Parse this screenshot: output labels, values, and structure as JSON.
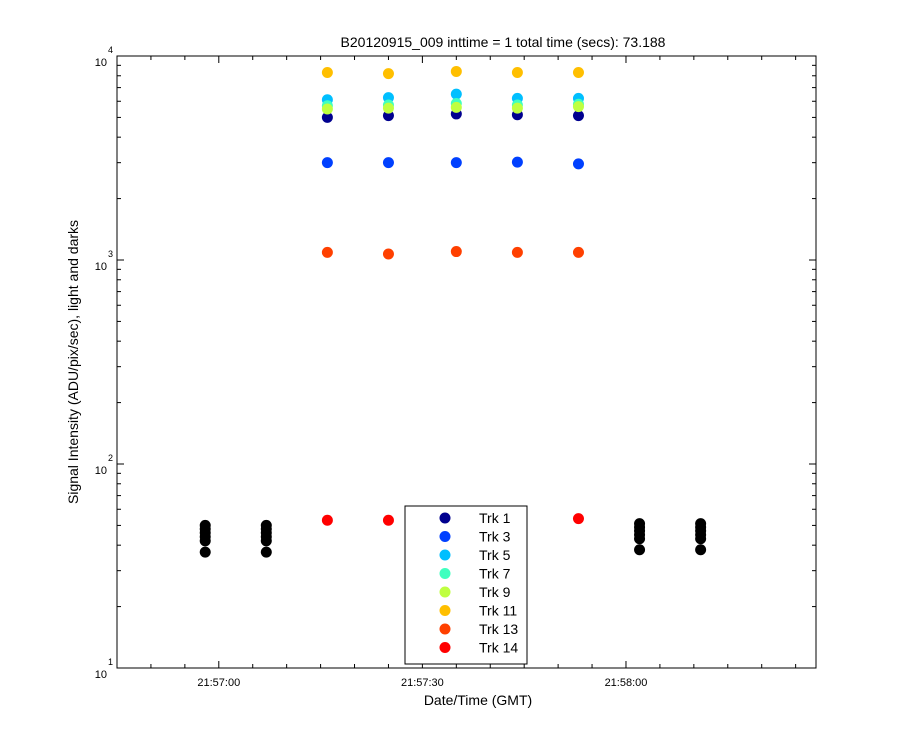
{
  "chart_data": {
    "type": "scatter",
    "title": "B20120915_009 inttime = 1 total time (secs): 73.188",
    "xlabel": "Date/Time (GMT)",
    "ylabel": "Signal Intensity (ADU/pix/sec), light and darks",
    "yscale": "log",
    "ylim": [
      10,
      10000
    ],
    "xlim": [
      "21:56:45",
      "21:58:28"
    ],
    "x_ticks": [
      "21:57:00",
      "21:57:30",
      "21:58:00"
    ],
    "y_ticks": [
      {
        "base": "10",
        "exp": "1"
      },
      {
        "base": "10",
        "exp": "2"
      },
      {
        "base": "10",
        "exp": "3"
      },
      {
        "base": "10",
        "exp": "4"
      }
    ],
    "grid": false,
    "legend_position": "bottom-center",
    "colors": {
      "Trk 1": "#00008f",
      "Trk 3": "#0040ff",
      "Trk 5": "#00bfff",
      "Trk 7": "#40ffbf",
      "Trk 9": "#bfff40",
      "Trk 11": "#ffbf00",
      "Trk 13": "#ff4000",
      "Trk 14": "#ff0000",
      "darks": "#000000"
    },
    "series": [
      {
        "name": "Trk 1",
        "x": [
          "21:57:16",
          "21:57:25",
          "21:57:35",
          "21:57:44",
          "21:57:53"
        ],
        "values": [
          5000,
          5100,
          5200,
          5150,
          5100
        ]
      },
      {
        "name": "Trk 3",
        "x": [
          "21:57:16",
          "21:57:25",
          "21:57:35",
          "21:57:44",
          "21:57:53"
        ],
        "values": [
          3000,
          3000,
          3000,
          3020,
          2960
        ]
      },
      {
        "name": "Trk 5",
        "x": [
          "21:57:16",
          "21:57:25",
          "21:57:35",
          "21:57:44",
          "21:57:53"
        ],
        "values": [
          6100,
          6250,
          6500,
          6200,
          6200
        ]
      },
      {
        "name": "Trk 7",
        "x": [
          "21:57:16",
          "21:57:25",
          "21:57:35",
          "21:57:44",
          "21:57:53"
        ],
        "values": [
          5700,
          5750,
          5850,
          5750,
          5800
        ]
      },
      {
        "name": "Trk 9",
        "x": [
          "21:57:16",
          "21:57:25",
          "21:57:35",
          "21:57:44",
          "21:57:53"
        ],
        "values": [
          5500,
          5550,
          5600,
          5550,
          5650
        ]
      },
      {
        "name": "Trk 11",
        "x": [
          "21:57:16",
          "21:57:25",
          "21:57:35",
          "21:57:44",
          "21:57:53"
        ],
        "values": [
          8300,
          8200,
          8400,
          8300,
          8300
        ]
      },
      {
        "name": "Trk 13",
        "x": [
          "21:57:16",
          "21:57:25",
          "21:57:35",
          "21:57:44",
          "21:57:53"
        ],
        "values": [
          1090,
          1070,
          1100,
          1090,
          1090
        ]
      },
      {
        "name": "Trk 14",
        "x": [
          "21:57:16",
          "21:57:25",
          "21:57:53"
        ],
        "values": [
          53,
          53,
          54
        ]
      }
    ],
    "dark_series": {
      "x": [
        "21:56:58",
        "21:57:07",
        "21:58:02",
        "21:58:11"
      ],
      "values": [
        [
          37,
          42,
          44,
          46,
          48,
          50
        ],
        [
          37,
          42,
          44,
          46,
          48,
          50
        ],
        [
          38,
          43,
          45,
          47,
          49,
          51
        ],
        [
          38,
          43,
          45,
          47,
          49,
          51
        ]
      ]
    },
    "legend": [
      "Trk 1",
      "Trk 3",
      "Trk 5",
      "Trk 7",
      "Trk 9",
      "Trk 11",
      "Trk 13",
      "Trk 14"
    ]
  }
}
